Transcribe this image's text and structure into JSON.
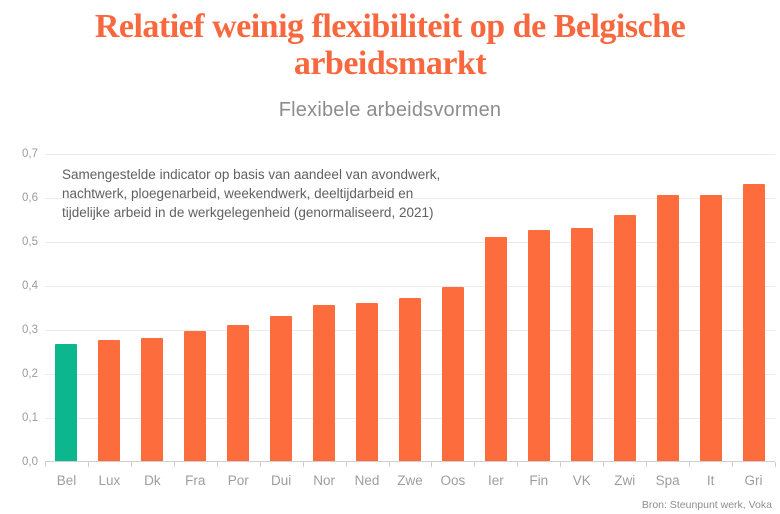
{
  "header": {
    "title": "Relatief weinig flexibiliteit op de Belgische\narbeidsmarkt",
    "subtitle": "Flexibele arbeidsvormen"
  },
  "annotation": "Samengestelde indicator op basis van aandeel van avondwerk,\nnachtwerk, ploegenarbeid, weekendwerk, deeltijdarbeid en\ntijdelijke arbeid in de werkgelegenheid (genormaliseerd, 2021)",
  "footer": {
    "source": "Bron: Steunpunt werk, Voka"
  },
  "colors": {
    "title_text": "#f8683f",
    "highlight_bar": "#0db78d",
    "default_bar": "#fc6c3c"
  },
  "chart_data": {
    "type": "bar",
    "title": "Flexibele arbeidsvormen",
    "categories": [
      "Bel",
      "Lux",
      "Dk",
      "Fra",
      "Por",
      "Dui",
      "Nor",
      "Ned",
      "Zwe",
      "Oos",
      "Ier",
      "Fin",
      "VK",
      "Zwi",
      "Spa",
      "It",
      "Gri"
    ],
    "values": [
      0.265,
      0.275,
      0.28,
      0.295,
      0.31,
      0.33,
      0.355,
      0.36,
      0.37,
      0.395,
      0.51,
      0.525,
      0.53,
      0.56,
      0.605,
      0.605,
      0.63
    ],
    "highlighted_category": "Bel",
    "xlabel": "",
    "ylabel": "",
    "ylim": [
      0,
      0.7
    ],
    "ytick_labels": [
      "0,0",
      "0,1",
      "0,2",
      "0,3",
      "0,4",
      "0,5",
      "0,6",
      "0,7"
    ],
    "grid": true,
    "legend": false,
    "annotation": "Samengestelde indicator op basis van aandeel van avondwerk, nachtwerk, ploegenarbeid, weekendwerk, deeltijdarbeid en tijdelijke arbeid in de werkgelegenheid (genormaliseerd, 2021)",
    "source": "Bron: Steunpunt werk, Voka"
  }
}
